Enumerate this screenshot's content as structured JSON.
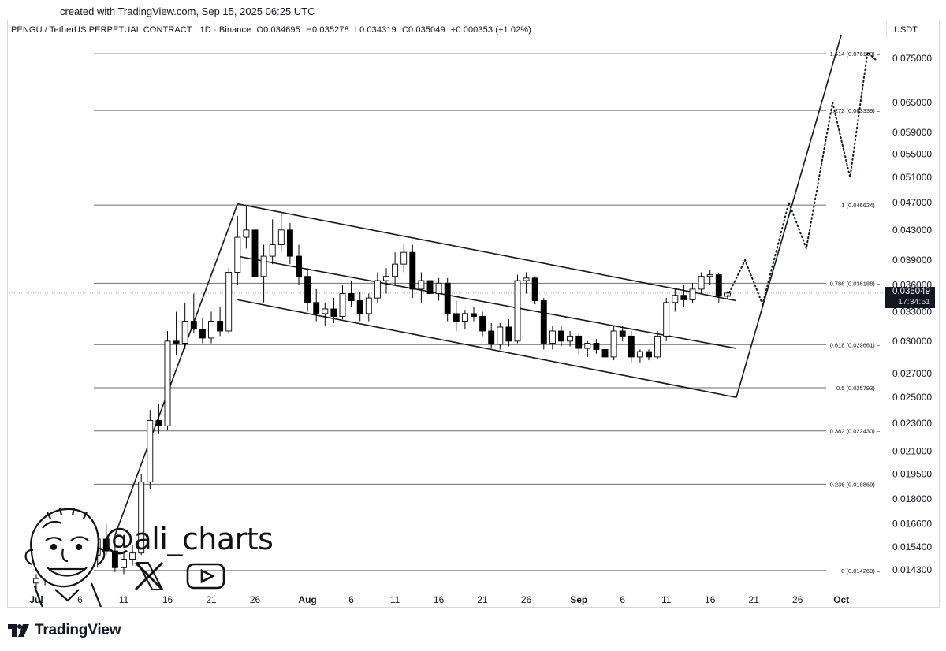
{
  "header": {
    "created": "created with TradingView.com, Sep 15, 2025 06:25 UTC",
    "symbol": "PENGU / TetherUS PERPETUAL CONTRACT · 1D · Binance",
    "open": "O0.034695",
    "high": "H0.035278",
    "low": "L0.034319",
    "close": "C0.035049",
    "change": "+0.000353 (+1.02%)",
    "currency": "USDT"
  },
  "price_badge": {
    "price": "0.035049",
    "countdown": "17:34:51"
  },
  "watermark": {
    "handle": "@ali_charts"
  },
  "footer": {
    "brand": "TradingView"
  },
  "colors": {
    "text": "#131722",
    "candle_down": "#000000",
    "candle_up": "#ffffff",
    "line": "#131722"
  },
  "chart_data": {
    "type": "candlestick",
    "y_axis": {
      "scale": "log",
      "range": [
        0.0134,
        0.082
      ],
      "ticks": [
        0.075,
        0.065,
        0.059,
        0.055,
        0.051,
        0.047,
        0.043,
        0.039,
        0.036,
        0.033,
        0.03,
        0.027,
        0.025,
        0.023,
        0.021,
        0.0195,
        0.018,
        0.0166,
        0.0154,
        0.0143
      ],
      "tick_labels": [
        "0.075000",
        "0.065000",
        "0.059000",
        "0.055000",
        "0.051000",
        "0.047000",
        "0.043000",
        "0.039000",
        "0.036000",
        "0.033000",
        "0.030000",
        "0.027000",
        "0.025000",
        "0.023000",
        "0.021000",
        "0.019500",
        "0.018000",
        "0.016600",
        "0.015400",
        "0.014300"
      ]
    },
    "x_axis": {
      "range": [
        "2025-06-30",
        "2025-10-04"
      ],
      "ticks": [
        "2025-07-01",
        "2025-07-06",
        "2025-07-11",
        "2025-07-16",
        "2025-07-21",
        "2025-07-26",
        "2025-08-01",
        "2025-08-06",
        "2025-08-11",
        "2025-08-16",
        "2025-08-21",
        "2025-08-26",
        "2025-09-01",
        "2025-09-06",
        "2025-09-11",
        "2025-09-16",
        "2025-09-21",
        "2025-09-26",
        "2025-10-01"
      ],
      "tick_labels": [
        "Jul",
        "6",
        "11",
        "16",
        "21",
        "26",
        "Aug",
        "6",
        "11",
        "16",
        "21",
        "26",
        "Sep",
        "6",
        "11",
        "16",
        "21",
        "26",
        "Oct"
      ]
    },
    "fib_levels": [
      {
        "label": "1.414 (0.076138)",
        "value": 0.076138
      },
      {
        "label": "1.272 (0.063339)",
        "value": 0.063339
      },
      {
        "label": "1 (0.046624)",
        "value": 0.046624
      },
      {
        "label": "0.786 (0.036188)",
        "value": 0.036188
      },
      {
        "label": "0.618 (0.029661)",
        "value": 0.029661
      },
      {
        "label": "0.5 (0.025793)",
        "value": 0.025793
      },
      {
        "label": "0.382 (0.022430)",
        "value": 0.02243
      },
      {
        "label": "0.236 (0.018869)",
        "value": 0.018869
      },
      {
        "label": "0 (0.014269)",
        "value": 0.014269
      }
    ],
    "candles": [
      {
        "date": "2025-07-01",
        "o": 0.0137,
        "h": 0.0141,
        "l": 0.0134,
        "c": 0.0139
      },
      {
        "date": "2025-07-02",
        "o": 0.0139,
        "h": 0.0144,
        "l": 0.0136,
        "c": 0.0142
      },
      {
        "date": "2025-07-03",
        "o": 0.0142,
        "h": 0.015,
        "l": 0.014,
        "c": 0.0147
      },
      {
        "date": "2025-07-04",
        "o": 0.0147,
        "h": 0.0152,
        "l": 0.0143,
        "c": 0.0145
      },
      {
        "date": "2025-07-05",
        "o": 0.0145,
        "h": 0.0158,
        "l": 0.0143,
        "c": 0.0156
      },
      {
        "date": "2025-07-06",
        "o": 0.0156,
        "h": 0.0164,
        "l": 0.0151,
        "c": 0.016
      },
      {
        "date": "2025-07-07",
        "o": 0.016,
        "h": 0.0163,
        "l": 0.0148,
        "c": 0.015
      },
      {
        "date": "2025-07-08",
        "o": 0.015,
        "h": 0.0161,
        "l": 0.0144,
        "c": 0.0158
      },
      {
        "date": "2025-07-09",
        "o": 0.0158,
        "h": 0.0166,
        "l": 0.015,
        "c": 0.0152
      },
      {
        "date": "2025-07-10",
        "o": 0.0152,
        "h": 0.016,
        "l": 0.0142,
        "c": 0.0144
      },
      {
        "date": "2025-07-11",
        "o": 0.0144,
        "h": 0.0152,
        "l": 0.0141,
        "c": 0.0148
      },
      {
        "date": "2025-07-12",
        "o": 0.0148,
        "h": 0.0155,
        "l": 0.0145,
        "c": 0.0151
      },
      {
        "date": "2025-07-13",
        "o": 0.0151,
        "h": 0.0195,
        "l": 0.015,
        "c": 0.019
      },
      {
        "date": "2025-07-14",
        "o": 0.019,
        "h": 0.024,
        "l": 0.0186,
        "c": 0.0232
      },
      {
        "date": "2025-07-15",
        "o": 0.0232,
        "h": 0.0245,
        "l": 0.0222,
        "c": 0.0228
      },
      {
        "date": "2025-07-16",
        "o": 0.0228,
        "h": 0.031,
        "l": 0.0225,
        "c": 0.03
      },
      {
        "date": "2025-07-17",
        "o": 0.03,
        "h": 0.033,
        "l": 0.0287,
        "c": 0.0298
      },
      {
        "date": "2025-07-18",
        "o": 0.0298,
        "h": 0.034,
        "l": 0.0292,
        "c": 0.032
      },
      {
        "date": "2025-07-19",
        "o": 0.032,
        "h": 0.035,
        "l": 0.0308,
        "c": 0.0312
      },
      {
        "date": "2025-07-20",
        "o": 0.0312,
        "h": 0.0323,
        "l": 0.0298,
        "c": 0.0303
      },
      {
        "date": "2025-07-21",
        "o": 0.0303,
        "h": 0.033,
        "l": 0.0298,
        "c": 0.032
      },
      {
        "date": "2025-07-22",
        "o": 0.032,
        "h": 0.0335,
        "l": 0.0305,
        "c": 0.031
      },
      {
        "date": "2025-07-23",
        "o": 0.031,
        "h": 0.038,
        "l": 0.0307,
        "c": 0.0375
      },
      {
        "date": "2025-07-24",
        "o": 0.0375,
        "h": 0.045,
        "l": 0.036,
        "c": 0.042
      },
      {
        "date": "2025-07-25",
        "o": 0.042,
        "h": 0.0465,
        "l": 0.0405,
        "c": 0.043
      },
      {
        "date": "2025-07-26",
        "o": 0.043,
        "h": 0.0445,
        "l": 0.036,
        "c": 0.037
      },
      {
        "date": "2025-07-27",
        "o": 0.037,
        "h": 0.041,
        "l": 0.034,
        "c": 0.0395
      },
      {
        "date": "2025-07-28",
        "o": 0.0395,
        "h": 0.0445,
        "l": 0.0385,
        "c": 0.041
      },
      {
        "date": "2025-07-29",
        "o": 0.041,
        "h": 0.0455,
        "l": 0.04,
        "c": 0.043
      },
      {
        "date": "2025-07-30",
        "o": 0.043,
        "h": 0.044,
        "l": 0.0385,
        "c": 0.0395
      },
      {
        "date": "2025-07-31",
        "o": 0.0395,
        "h": 0.041,
        "l": 0.036,
        "c": 0.037
      },
      {
        "date": "2025-08-01",
        "o": 0.037,
        "h": 0.038,
        "l": 0.033,
        "c": 0.034
      },
      {
        "date": "2025-08-02",
        "o": 0.034,
        "h": 0.0355,
        "l": 0.032,
        "c": 0.0328
      },
      {
        "date": "2025-08-03",
        "o": 0.0328,
        "h": 0.034,
        "l": 0.0315,
        "c": 0.0333
      },
      {
        "date": "2025-08-04",
        "o": 0.0333,
        "h": 0.0345,
        "l": 0.0318,
        "c": 0.0325
      },
      {
        "date": "2025-08-05",
        "o": 0.0325,
        "h": 0.036,
        "l": 0.0322,
        "c": 0.035
      },
      {
        "date": "2025-08-06",
        "o": 0.035,
        "h": 0.0365,
        "l": 0.0335,
        "c": 0.0342
      },
      {
        "date": "2025-08-07",
        "o": 0.0342,
        "h": 0.0352,
        "l": 0.032,
        "c": 0.0328
      },
      {
        "date": "2025-08-08",
        "o": 0.0328,
        "h": 0.035,
        "l": 0.032,
        "c": 0.0345
      },
      {
        "date": "2025-08-09",
        "o": 0.0345,
        "h": 0.0375,
        "l": 0.034,
        "c": 0.0365
      },
      {
        "date": "2025-08-10",
        "o": 0.0365,
        "h": 0.038,
        "l": 0.035,
        "c": 0.037
      },
      {
        "date": "2025-08-11",
        "o": 0.037,
        "h": 0.04,
        "l": 0.036,
        "c": 0.0385
      },
      {
        "date": "2025-08-12",
        "o": 0.0385,
        "h": 0.041,
        "l": 0.0375,
        "c": 0.04
      },
      {
        "date": "2025-08-13",
        "o": 0.04,
        "h": 0.041,
        "l": 0.0345,
        "c": 0.0355
      },
      {
        "date": "2025-08-14",
        "o": 0.0355,
        "h": 0.0375,
        "l": 0.034,
        "c": 0.0365
      },
      {
        "date": "2025-08-15",
        "o": 0.0365,
        "h": 0.0372,
        "l": 0.0345,
        "c": 0.035
      },
      {
        "date": "2025-08-16",
        "o": 0.035,
        "h": 0.0368,
        "l": 0.0342,
        "c": 0.0362
      },
      {
        "date": "2025-08-17",
        "o": 0.0362,
        "h": 0.0368,
        "l": 0.032,
        "c": 0.0328
      },
      {
        "date": "2025-08-18",
        "o": 0.0328,
        "h": 0.0342,
        "l": 0.031,
        "c": 0.032
      },
      {
        "date": "2025-08-19",
        "o": 0.032,
        "h": 0.0332,
        "l": 0.0312,
        "c": 0.0328
      },
      {
        "date": "2025-08-20",
        "o": 0.0328,
        "h": 0.0335,
        "l": 0.032,
        "c": 0.0325
      },
      {
        "date": "2025-08-21",
        "o": 0.0325,
        "h": 0.033,
        "l": 0.0305,
        "c": 0.031
      },
      {
        "date": "2025-08-22",
        "o": 0.031,
        "h": 0.0318,
        "l": 0.0293,
        "c": 0.0297
      },
      {
        "date": "2025-08-23",
        "o": 0.0297,
        "h": 0.0318,
        "l": 0.0292,
        "c": 0.0314
      },
      {
        "date": "2025-08-24",
        "o": 0.0314,
        "h": 0.0322,
        "l": 0.0295,
        "c": 0.03
      },
      {
        "date": "2025-08-25",
        "o": 0.03,
        "h": 0.0372,
        "l": 0.0298,
        "c": 0.0365
      },
      {
        "date": "2025-08-26",
        "o": 0.0365,
        "h": 0.0375,
        "l": 0.035,
        "c": 0.0368
      },
      {
        "date": "2025-08-27",
        "o": 0.0368,
        "h": 0.037,
        "l": 0.0338,
        "c": 0.0342
      },
      {
        "date": "2025-08-28",
        "o": 0.0342,
        "h": 0.0345,
        "l": 0.0292,
        "c": 0.0298
      },
      {
        "date": "2025-08-29",
        "o": 0.0298,
        "h": 0.0315,
        "l": 0.0292,
        "c": 0.031
      },
      {
        "date": "2025-08-30",
        "o": 0.031,
        "h": 0.0315,
        "l": 0.0295,
        "c": 0.03
      },
      {
        "date": "2025-08-31",
        "o": 0.03,
        "h": 0.031,
        "l": 0.0295,
        "c": 0.0305
      },
      {
        "date": "2025-09-01",
        "o": 0.0305,
        "h": 0.0308,
        "l": 0.0288,
        "c": 0.0293
      },
      {
        "date": "2025-09-02",
        "o": 0.0293,
        "h": 0.03,
        "l": 0.0285,
        "c": 0.0298
      },
      {
        "date": "2025-09-03",
        "o": 0.0298,
        "h": 0.0302,
        "l": 0.0288,
        "c": 0.0292
      },
      {
        "date": "2025-09-04",
        "o": 0.0292,
        "h": 0.0298,
        "l": 0.0276,
        "c": 0.0285
      },
      {
        "date": "2025-09-05",
        "o": 0.0285,
        "h": 0.0315,
        "l": 0.0282,
        "c": 0.031
      },
      {
        "date": "2025-09-06",
        "o": 0.031,
        "h": 0.0315,
        "l": 0.03,
        "c": 0.0305
      },
      {
        "date": "2025-09-07",
        "o": 0.0305,
        "h": 0.031,
        "l": 0.028,
        "c": 0.0285
      },
      {
        "date": "2025-09-08",
        "o": 0.0285,
        "h": 0.0292,
        "l": 0.028,
        "c": 0.029
      },
      {
        "date": "2025-09-09",
        "o": 0.029,
        "h": 0.0292,
        "l": 0.0282,
        "c": 0.0285
      },
      {
        "date": "2025-09-10",
        "o": 0.0285,
        "h": 0.031,
        "l": 0.0283,
        "c": 0.0305
      },
      {
        "date": "2025-09-11",
        "o": 0.0305,
        "h": 0.0345,
        "l": 0.03,
        "c": 0.034
      },
      {
        "date": "2025-09-12",
        "o": 0.034,
        "h": 0.0355,
        "l": 0.033,
        "c": 0.0348
      },
      {
        "date": "2025-09-13",
        "o": 0.0348,
        "h": 0.036,
        "l": 0.0335,
        "c": 0.0343
      },
      {
        "date": "2025-09-14",
        "o": 0.0343,
        "h": 0.0362,
        "l": 0.034,
        "c": 0.0355
      },
      {
        "date": "2025-09-15",
        "o": 0.0355,
        "h": 0.0375,
        "l": 0.035,
        "c": 0.037
      },
      {
        "date": "2025-09-16",
        "o": 0.037,
        "h": 0.0378,
        "l": 0.036,
        "c": 0.0372
      },
      {
        "date": "2025-09-17",
        "o": 0.0372,
        "h": 0.0374,
        "l": 0.034,
        "c": 0.0347
      },
      {
        "date": "2025-09-18",
        "o": 0.034695,
        "h": 0.035278,
        "l": 0.034319,
        "c": 0.035049
      }
    ],
    "channel_lines": [
      {
        "from": {
          "date": "2025-07-24",
          "value": 0.0468
        },
        "to": {
          "date": "2025-09-19",
          "value": 0.0342
        }
      },
      {
        "from": {
          "date": "2025-07-24",
          "value": 0.0395
        },
        "to": {
          "date": "2025-09-19",
          "value": 0.0293
        }
      },
      {
        "from": {
          "date": "2025-07-24",
          "value": 0.0343
        },
        "to": {
          "date": "2025-09-19",
          "value": 0.025
        }
      }
    ],
    "trend_lines": [
      {
        "from": {
          "date": "2025-07-10",
          "value": 0.016
        },
        "to": {
          "date": "2025-07-24",
          "value": 0.0468
        }
      },
      {
        "from": {
          "date": "2025-09-19",
          "value": 0.025
        },
        "to": {
          "date": "2025-10-01",
          "value": 0.081
        }
      }
    ],
    "projection_path": [
      {
        "date": "2025-09-18",
        "value": 0.0347
      },
      {
        "date": "2025-09-20",
        "value": 0.039
      },
      {
        "date": "2025-09-22",
        "value": 0.0338
      },
      {
        "date": "2025-09-25",
        "value": 0.047
      },
      {
        "date": "2025-09-27",
        "value": 0.0405
      },
      {
        "date": "2025-09-30",
        "value": 0.065
      },
      {
        "date": "2025-10-02",
        "value": 0.051
      },
      {
        "date": "2025-10-04",
        "value": 0.0765
      },
      {
        "date": "2025-10-05",
        "value": 0.0745
      }
    ]
  }
}
